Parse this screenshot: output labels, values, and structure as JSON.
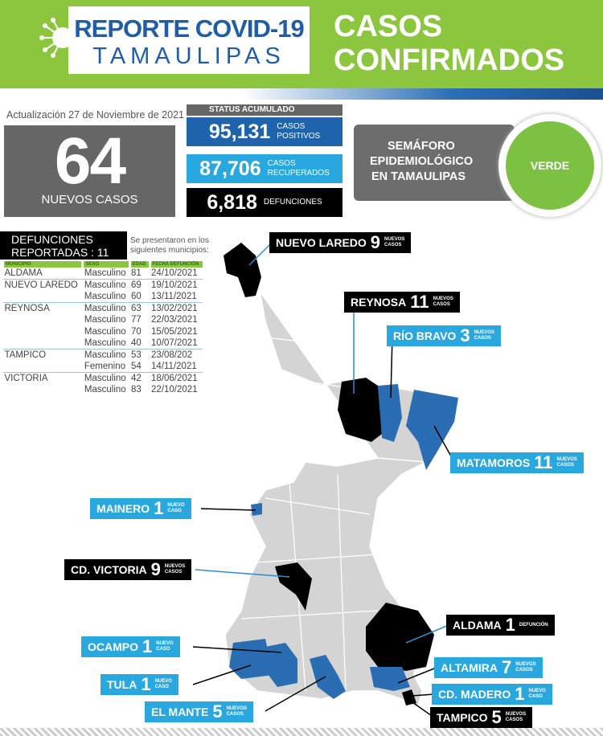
{
  "header": {
    "title_line1": "REPORTE COVID-19",
    "title_line2": "TAMAULIPAS",
    "right_line1": "CASOS",
    "right_line2": "CONFIRMADOS"
  },
  "update": "Actualización 27 de Noviembre de 2021",
  "new_cases": {
    "value": "64",
    "label": "NUEVOS CASOS"
  },
  "status": {
    "title": "STATUS ACUMULADO",
    "items": [
      {
        "value": "95,131",
        "l1": "CASOS",
        "l2": "POSITIVOS",
        "color": "#1f63ad"
      },
      {
        "value": "87,706",
        "l1": "CASOS",
        "l2": "RECUPERADOS",
        "color": "#29a8e0"
      },
      {
        "value": "6,818",
        "l1": "DEFUNCIONES",
        "l2": "",
        "color": "#000000"
      }
    ]
  },
  "semaforo": {
    "l1": "SEMÁFORO",
    "l2": "EPIDEMIOLÓGICO",
    "l3": "EN TAMAULIPAS",
    "value": "VERDE",
    "color": "#7dc142"
  },
  "deaths": {
    "title1": "DEFUNCIONES",
    "title2": "REPORTADAS : 11",
    "note1": "Se presentaron en los",
    "note2": "siguientes municipios:",
    "headers": [
      "MUNICIPIO",
      "SEXO",
      "EDAD",
      "FECHA DEFUNCIÓN"
    ],
    "rows": [
      [
        "ALDAMA",
        "Masculino",
        "81",
        "24/10/2021"
      ],
      [
        "NUEVO LAREDO",
        "Masculino",
        "69",
        "19/10/2021"
      ],
      [
        "",
        "Masculino",
        "60",
        "13/11/2021"
      ],
      [
        "REYNOSA",
        "Masculino",
        "63",
        "13/02/2021"
      ],
      [
        "",
        "Masculino",
        "77",
        "22/03/2021"
      ],
      [
        "",
        "Masculino",
        "70",
        "15/05/2021"
      ],
      [
        "",
        "Masculino",
        "40",
        "10/07/2021"
      ],
      [
        "TAMPICO",
        "Masculino",
        "53",
        "23/08/202"
      ],
      [
        "",
        "Femenino",
        "54",
        "14/11/2021"
      ],
      [
        "VICTORIA",
        "Masculino",
        "42",
        "18/06/2021"
      ],
      [
        "",
        "Masculino",
        "83",
        "22/10/2021"
      ]
    ]
  },
  "map_labels": [
    {
      "name": "NUEVO LAREDO",
      "count": "9",
      "s1": "NUEVOS",
      "s2": "CASOS",
      "style": "blk"
    },
    {
      "name": "REYNOSA",
      "count": "11",
      "s1": "NUEVOS",
      "s2": "CASOS",
      "style": "blk"
    },
    {
      "name": "RÍO BRAVO",
      "count": "3",
      "s1": "NUEVOS",
      "s2": "CASOS",
      "style": "lb"
    },
    {
      "name": "MATAMOROS",
      "count": "11",
      "s1": "NUEVOS",
      "s2": "CASOS",
      "style": "lb"
    },
    {
      "name": "MAINERO",
      "count": "1",
      "s1": "NUEVO",
      "s2": "CASO",
      "style": "lb"
    },
    {
      "name": "CD. VICTORIA",
      "count": "9",
      "s1": "NUEVOS",
      "s2": "CASOS",
      "style": "blk"
    },
    {
      "name": "ALDAMA",
      "count": "1",
      "s1": "DEFUNCIÓN",
      "s2": "",
      "style": "blk"
    },
    {
      "name": "OCAMPO",
      "count": "1",
      "s1": "NUEVO",
      "s2": "CASO",
      "style": "lb"
    },
    {
      "name": "ALTAMIRA",
      "count": "7",
      "s1": "NUEVOS",
      "s2": "CASOS",
      "style": "lb"
    },
    {
      "name": "TULA",
      "count": "1",
      "s1": "NUEVO",
      "s2": "CASO",
      "style": "lb"
    },
    {
      "name": "CD. MADERO",
      "count": "1",
      "s1": "NUEVO",
      "s2": "CASO",
      "style": "lb"
    },
    {
      "name": "EL MANTE",
      "count": "5",
      "s1": "NUEVOS",
      "s2": "CASOS",
      "style": "lb"
    },
    {
      "name": "TAMPICO",
      "count": "5",
      "s1": "NUEVOS",
      "s2": "CASOS",
      "style": "blk"
    }
  ]
}
